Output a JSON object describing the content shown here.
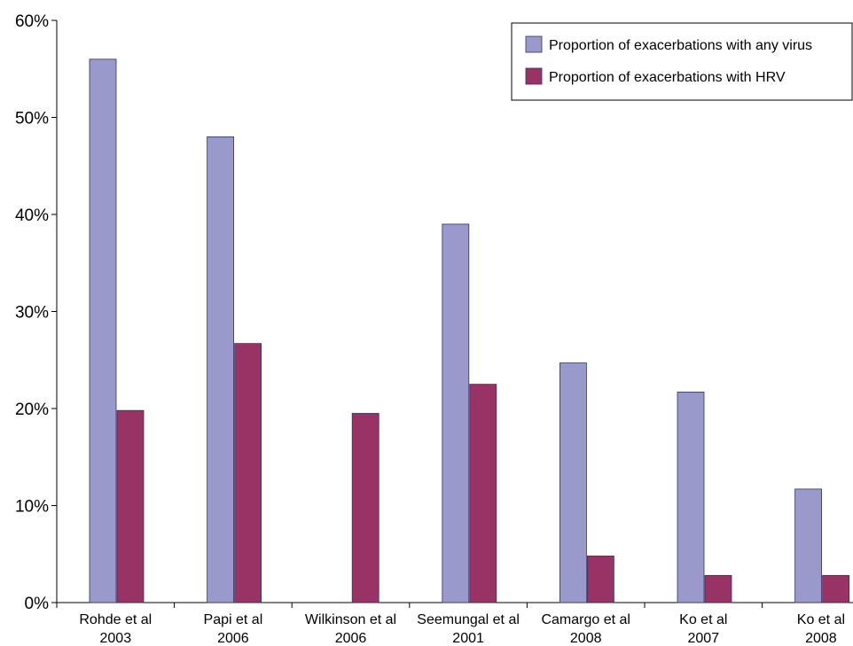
{
  "chart_data": {
    "type": "bar",
    "categories": [
      [
        "Rohde et al",
        "2003"
      ],
      [
        "Papi et al",
        "2006"
      ],
      [
        "Wilkinson et al",
        "2006"
      ],
      [
        "Seemungal et al",
        "2001"
      ],
      [
        "Camargo et al",
        "2008"
      ],
      [
        "Ko et al",
        "2007"
      ],
      [
        "Ko et al",
        "2008"
      ]
    ],
    "series": [
      {
        "name": "Proportion of exacerbations with any virus",
        "color": "#9999cc",
        "values": [
          56,
          48,
          null,
          39,
          24.7,
          21.7,
          11.7
        ]
      },
      {
        "name": "Proportion of exacerbations with HRV",
        "color": "#993366",
        "values": [
          19.8,
          26.7,
          19.5,
          22.5,
          4.8,
          2.8,
          2.8
        ]
      }
    ],
    "yticks": [
      "0%",
      "10%",
      "20%",
      "30%",
      "40%",
      "50%",
      "60%"
    ],
    "ylim": [
      0,
      60
    ],
    "grid": false,
    "legend_position": "top-right",
    "title": "",
    "xlabel": "",
    "ylabel": ""
  }
}
